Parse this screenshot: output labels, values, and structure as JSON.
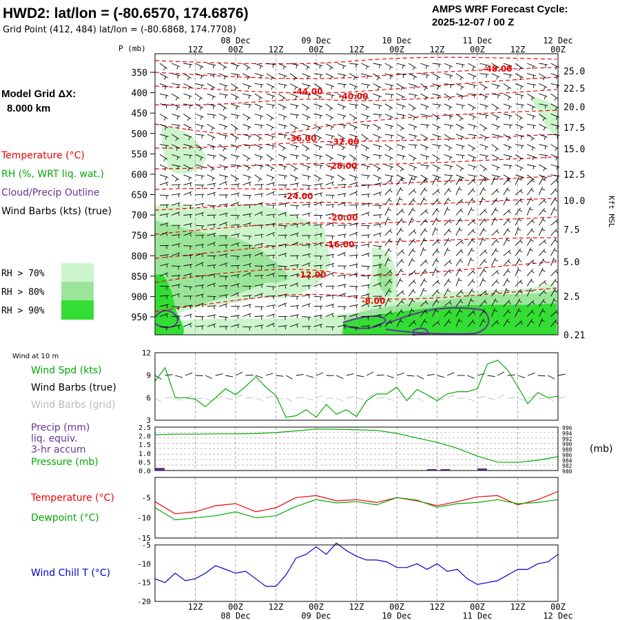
{
  "header": {
    "title": "HWD2:  lat/lon = (-80.6570, 174.6876)",
    "subtitle": "Grid Point (412, 484) lat/lon = (-80.6868, 174.7708)",
    "forecast_label": "AMPS WRF Forecast Cycle:",
    "forecast_cycle": "2025-12-07 / 00  Z"
  },
  "colors": {
    "temperature": "#ee0000",
    "rh": "#00aa00",
    "cloud": "#663399",
    "wind_chill": "#0000cc",
    "rh70": "#ccf5cc",
    "rh80": "#9be59b",
    "rh90": "#33dd33",
    "grid": "#aaaaaa"
  },
  "left_panel": {
    "model_grid_label": "Model Grid ΔX:",
    "model_grid_value": "8.000 km",
    "legend_temperature": "Temperature (°C)",
    "legend_rh": "RH (%, WRT liq. wat.)",
    "legend_cloud": "Cloud/Precip Outline",
    "legend_wind": "Wind Barbs (kts) (true)",
    "rh_levels": [
      "RH > 70%",
      "RH > 80%",
      "RH > 90%"
    ]
  },
  "time_axis": {
    "ticks": [
      "12Z",
      "00Z",
      "12Z",
      "00Z",
      "12Z",
      "00Z",
      "12Z",
      "00Z",
      "12Z",
      "00Z"
    ],
    "dates": [
      "08 Dec",
      "09 Dec",
      "10 Dec",
      "11 Dec",
      "12 Dec"
    ]
  },
  "chart_data": [
    {
      "type": "contour",
      "name": "cross-section",
      "ylabel_left": "P (mb)",
      "ylabel_right": "Kft MSL",
      "pressure_levels": [
        350,
        400,
        450,
        500,
        550,
        600,
        650,
        700,
        750,
        800,
        850,
        900,
        950
      ],
      "height_kft": [
        "25.0",
        "22.5",
        "20.0",
        "17.5",
        "15.0",
        "12.5",
        "10.0",
        "7.5",
        "5.0",
        "2.5",
        "0.21"
      ],
      "temperature_labels": [
        "-48.00",
        "-44.00",
        "-40.00",
        "-36.00",
        "-32.00",
        "-28.00",
        "-24.00",
        "-20.00",
        "-16.00",
        "-12.00",
        "-8.00"
      ]
    },
    {
      "type": "line",
      "name": "wind",
      "header": "Wind at 10 m",
      "legend": [
        "Wind Spd (kts)",
        "Wind Barbs (true)",
        "Wind Barbs (grid)"
      ],
      "ylim": [
        3,
        12
      ],
      "yticks": [
        3,
        6,
        9,
        12
      ],
      "x_hours": [
        0,
        3,
        6,
        9,
        12,
        15,
        18,
        21,
        24,
        27,
        30,
        33,
        36,
        39,
        42,
        45,
        48,
        51,
        54,
        57,
        60,
        63,
        66,
        69,
        72,
        75,
        78,
        81,
        84,
        87,
        90,
        93,
        96,
        99,
        102,
        105,
        108,
        111,
        114,
        117,
        120
      ],
      "series": [
        {
          "name": "Wind Spd (kts)",
          "values": [
            8.2,
            10,
            6,
            6,
            5.8,
            4.8,
            6,
            7.2,
            6.4,
            7.5,
            8.8,
            7.4,
            6.3,
            3.4,
            3.6,
            4.4,
            3.4,
            5.1,
            3.8,
            4.4,
            3.5,
            5.6,
            6.5,
            6.5,
            7.4,
            5.6,
            7.1,
            6.4,
            5.6,
            6.5,
            6.8,
            6.8,
            7.2,
            10.5,
            11,
            9.7,
            7.5,
            5.2,
            6.7,
            6,
            6.2
          ]
        }
      ]
    },
    {
      "type": "line",
      "name": "precip-pressure",
      "legend": [
        "Precip (mm)",
        "liq. equiv.",
        "3-hr accum",
        "Pressure (mb)"
      ],
      "ylim_left": [
        0,
        2.5
      ],
      "yticks_left": [
        "0.0",
        "0.5",
        "1.0",
        "1.5",
        "2.0",
        "2.5"
      ],
      "ylim_right": [
        980,
        996
      ],
      "yticks_right": [
        "980",
        "982",
        "984",
        "986",
        "988",
        "990",
        "992",
        "994",
        "996"
      ],
      "ylabel_right": "(mb)",
      "x_hours": [
        0,
        6,
        12,
        18,
        24,
        30,
        36,
        42,
        48,
        54,
        60,
        66,
        72,
        78,
        84,
        90,
        96,
        102,
        108,
        114,
        120
      ],
      "series": [
        {
          "name": "Pressure (mb)",
          "values": [
            993.2,
            993.4,
            993.4,
            993.5,
            993.5,
            993.6,
            994,
            994.6,
            995.3,
            995.2,
            995,
            994.8,
            993.7,
            992,
            990.4,
            988.2,
            985.3,
            983.1,
            983,
            983.8,
            985.1
          ]
        }
      ],
      "precip_bars": [
        {
          "hour": 0,
          "value": 0.15
        },
        {
          "hour": 81,
          "value": 0.05
        },
        {
          "hour": 85,
          "value": 0.06
        },
        {
          "hour": 96,
          "value": 0.12
        }
      ]
    },
    {
      "type": "line",
      "name": "temperature",
      "legend": [
        "Temperature (°C)",
        "Dewpoint (°C)"
      ],
      "ylim": [
        -15,
        0
      ],
      "yticks": [
        -15,
        -10,
        -5
      ],
      "x_hours": [
        0,
        6,
        12,
        18,
        24,
        30,
        36,
        42,
        48,
        54,
        60,
        66,
        72,
        78,
        84,
        90,
        96,
        102,
        108,
        114,
        120
      ],
      "series": [
        {
          "name": "Temperature (°C)",
          "values": [
            -6,
            -9,
            -8.5,
            -7,
            -6.5,
            -8.5,
            -7.5,
            -5,
            -4.5,
            -5.8,
            -5.5,
            -6.2,
            -5,
            -5.8,
            -7,
            -6,
            -4.8,
            -4.5,
            -6.8,
            -5.5,
            -3.5
          ]
        },
        {
          "name": "Dewpoint (°C)",
          "values": [
            -7.5,
            -10.5,
            -10,
            -9.5,
            -8.5,
            -10,
            -9.5,
            -7.2,
            -5.5,
            -6.3,
            -6,
            -6.8,
            -5,
            -5.6,
            -7.4,
            -6.5,
            -6.2,
            -5.5,
            -6.5,
            -6.2,
            -5.5
          ]
        }
      ]
    },
    {
      "type": "line",
      "name": "wind-chill",
      "legend": [
        "Wind Chill T (°C)"
      ],
      "ylim": [
        -20,
        -5
      ],
      "yticks": [
        -20,
        -15,
        -10,
        -5
      ],
      "x_hours": [
        0,
        3,
        6,
        9,
        12,
        15,
        18,
        21,
        24,
        27,
        30,
        33,
        36,
        39,
        42,
        45,
        48,
        51,
        54,
        57,
        60,
        63,
        66,
        69,
        72,
        75,
        78,
        81,
        84,
        87,
        90,
        93,
        96,
        99,
        102,
        105,
        108,
        111,
        114,
        117,
        120
      ],
      "series": [
        {
          "name": "Wind Chill T (°C)",
          "values": [
            -14,
            -15,
            -12.5,
            -14.5,
            -14,
            -12.5,
            -10.5,
            -11.5,
            -12.5,
            -12,
            -14,
            -16,
            -16,
            -13,
            -8.5,
            -7.5,
            -5.5,
            -7.5,
            -4.5,
            -6.5,
            -8,
            -9,
            -9,
            -9.5,
            -11,
            -11,
            -10,
            -11.5,
            -10,
            -12,
            -11.5,
            -14,
            -15.5,
            -15,
            -14.5,
            -13,
            -11.5,
            -11.5,
            -10,
            -9.5,
            -7.5
          ]
        }
      ]
    }
  ]
}
